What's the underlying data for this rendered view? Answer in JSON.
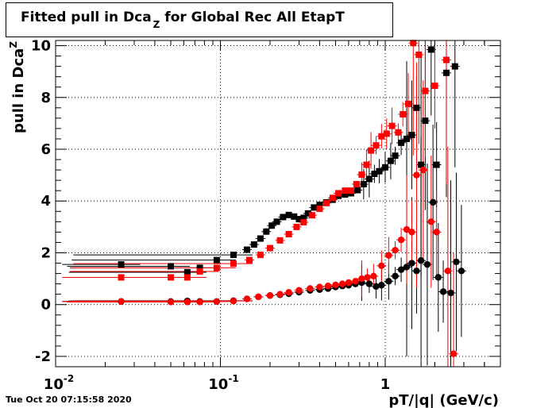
{
  "title": {
    "main": "Fitted pull in Dca",
    "sub": "Z",
    "rest": " for Global Rec All EtapT"
  },
  "datestamp": "Tue Oct 20 07:15:58 2020",
  "chart_data": {
    "type": "scatter",
    "title": "Fitted pull in Dca_Z for Global Rec All EtapT",
    "xlabel": "pT/|q| (GeV/c)",
    "ylabel": "pull in Dca_Z",
    "x_scale": "log",
    "xlim": [
      0.01,
      5.0
    ],
    "ylim": [
      -2.4,
      10.2
    ],
    "grid": true,
    "x_tick_labels": [
      "10^-2",
      "10^-1",
      "1"
    ],
    "y_tick_labels": [
      "-2",
      "0",
      "2",
      "4",
      "6",
      "8",
      "10"
    ],
    "series": [
      {
        "marker": "square",
        "color": "#000000",
        "points": [
          [
            0.025,
            1.55
          ],
          [
            0.05,
            1.48
          ],
          [
            0.063,
            1.25
          ],
          [
            0.075,
            1.42
          ],
          [
            0.095,
            1.72
          ],
          [
            0.12,
            1.92
          ],
          [
            0.145,
            2.12
          ],
          [
            0.16,
            2.32
          ],
          [
            0.175,
            2.55
          ],
          [
            0.19,
            2.82
          ],
          [
            0.205,
            3.05
          ],
          [
            0.22,
            3.2
          ],
          [
            0.24,
            3.38
          ],
          [
            0.26,
            3.46
          ],
          [
            0.28,
            3.4
          ],
          [
            0.3,
            3.3
          ],
          [
            0.32,
            3.35
          ],
          [
            0.34,
            3.52
          ],
          [
            0.37,
            3.75
          ],
          [
            0.4,
            3.85
          ],
          [
            0.44,
            3.95
          ],
          [
            0.48,
            4.05
          ],
          [
            0.52,
            4.2
          ],
          [
            0.57,
            4.25
          ],
          [
            0.62,
            4.3
          ],
          [
            0.68,
            4.42
          ],
          [
            0.74,
            4.65
          ],
          [
            0.8,
            4.85
          ],
          [
            0.86,
            5.05
          ],
          [
            0.92,
            5.15
          ],
          [
            1.0,
            5.3
          ],
          [
            1.08,
            5.55
          ],
          [
            1.15,
            5.75
          ],
          [
            1.25,
            6.25
          ],
          [
            1.35,
            6.4
          ],
          [
            1.45,
            6.55
          ],
          [
            1.55,
            7.6
          ],
          [
            1.65,
            5.4
          ],
          [
            1.75,
            7.1
          ],
          [
            1.9,
            9.85
          ],
          [
            2.05,
            5.4
          ],
          [
            2.35,
            8.95
          ],
          [
            2.65,
            9.2
          ]
        ]
      },
      {
        "marker": "circle",
        "color": "#000000",
        "points": [
          [
            0.025,
            0.12
          ],
          [
            0.05,
            0.12
          ],
          [
            0.063,
            0.14
          ],
          [
            0.075,
            0.12
          ],
          [
            0.095,
            0.12
          ],
          [
            0.12,
            0.15
          ],
          [
            0.145,
            0.22
          ],
          [
            0.17,
            0.3
          ],
          [
            0.2,
            0.35
          ],
          [
            0.23,
            0.38
          ],
          [
            0.26,
            0.42
          ],
          [
            0.3,
            0.48
          ],
          [
            0.35,
            0.55
          ],
          [
            0.4,
            0.58
          ],
          [
            0.45,
            0.62
          ],
          [
            0.5,
            0.68
          ],
          [
            0.55,
            0.72
          ],
          [
            0.6,
            0.75
          ],
          [
            0.66,
            0.8
          ],
          [
            0.72,
            0.85
          ],
          [
            0.8,
            0.8
          ],
          [
            0.88,
            0.7
          ],
          [
            0.95,
            0.75
          ],
          [
            1.05,
            0.9
          ],
          [
            1.15,
            1.1
          ],
          [
            1.25,
            1.35
          ],
          [
            1.35,
            1.45
          ],
          [
            1.45,
            1.6
          ],
          [
            1.55,
            1.3
          ],
          [
            1.65,
            1.7
          ],
          [
            1.8,
            1.55
          ],
          [
            1.95,
            3.95
          ],
          [
            2.1,
            1.05
          ],
          [
            2.25,
            0.5
          ],
          [
            2.5,
            0.45
          ],
          [
            2.7,
            1.65
          ],
          [
            2.9,
            1.3
          ]
        ]
      },
      {
        "marker": "square",
        "color": "#ff0000",
        "points": [
          [
            0.025,
            1.05
          ],
          [
            0.05,
            1.05
          ],
          [
            0.063,
            1.05
          ],
          [
            0.075,
            1.28
          ],
          [
            0.095,
            1.42
          ],
          [
            0.12,
            1.58
          ],
          [
            0.15,
            1.72
          ],
          [
            0.175,
            1.92
          ],
          [
            0.2,
            2.18
          ],
          [
            0.23,
            2.48
          ],
          [
            0.26,
            2.72
          ],
          [
            0.29,
            3.0
          ],
          [
            0.32,
            3.18
          ],
          [
            0.36,
            3.45
          ],
          [
            0.4,
            3.7
          ],
          [
            0.44,
            3.92
          ],
          [
            0.48,
            4.12
          ],
          [
            0.52,
            4.3
          ],
          [
            0.57,
            4.4
          ],
          [
            0.62,
            4.4
          ],
          [
            0.67,
            4.65
          ],
          [
            0.72,
            5.02
          ],
          [
            0.77,
            5.4
          ],
          [
            0.82,
            5.95
          ],
          [
            0.88,
            6.15
          ],
          [
            0.95,
            6.5
          ],
          [
            1.02,
            6.6
          ],
          [
            1.1,
            6.9
          ],
          [
            1.2,
            6.65
          ],
          [
            1.28,
            7.35
          ],
          [
            1.38,
            7.75
          ],
          [
            1.48,
            10.1
          ],
          [
            1.6,
            9.65
          ],
          [
            1.75,
            8.25
          ],
          [
            2.0,
            8.45
          ],
          [
            2.35,
            9.45
          ]
        ]
      },
      {
        "marker": "circle",
        "color": "#ff0000",
        "points": [
          [
            0.025,
            0.12
          ],
          [
            0.05,
            0.1
          ],
          [
            0.063,
            0.1
          ],
          [
            0.075,
            0.1
          ],
          [
            0.095,
            0.12
          ],
          [
            0.12,
            0.14
          ],
          [
            0.145,
            0.22
          ],
          [
            0.17,
            0.3
          ],
          [
            0.2,
            0.35
          ],
          [
            0.23,
            0.4
          ],
          [
            0.26,
            0.47
          ],
          [
            0.3,
            0.55
          ],
          [
            0.35,
            0.62
          ],
          [
            0.4,
            0.68
          ],
          [
            0.45,
            0.72
          ],
          [
            0.5,
            0.76
          ],
          [
            0.55,
            0.8
          ],
          [
            0.6,
            0.85
          ],
          [
            0.66,
            0.9
          ],
          [
            0.72,
            1.0
          ],
          [
            0.78,
            1.05
          ],
          [
            0.85,
            1.1
          ],
          [
            0.95,
            1.5
          ],
          [
            1.05,
            1.9
          ],
          [
            1.15,
            2.1
          ],
          [
            1.25,
            2.5
          ],
          [
            1.35,
            2.9
          ],
          [
            1.45,
            2.8
          ],
          [
            1.55,
            5.0
          ],
          [
            1.7,
            5.2
          ],
          [
            1.9,
            3.2
          ],
          [
            2.05,
            2.8
          ],
          [
            2.4,
            1.3
          ],
          [
            2.6,
            -1.9
          ]
        ]
      }
    ]
  }
}
